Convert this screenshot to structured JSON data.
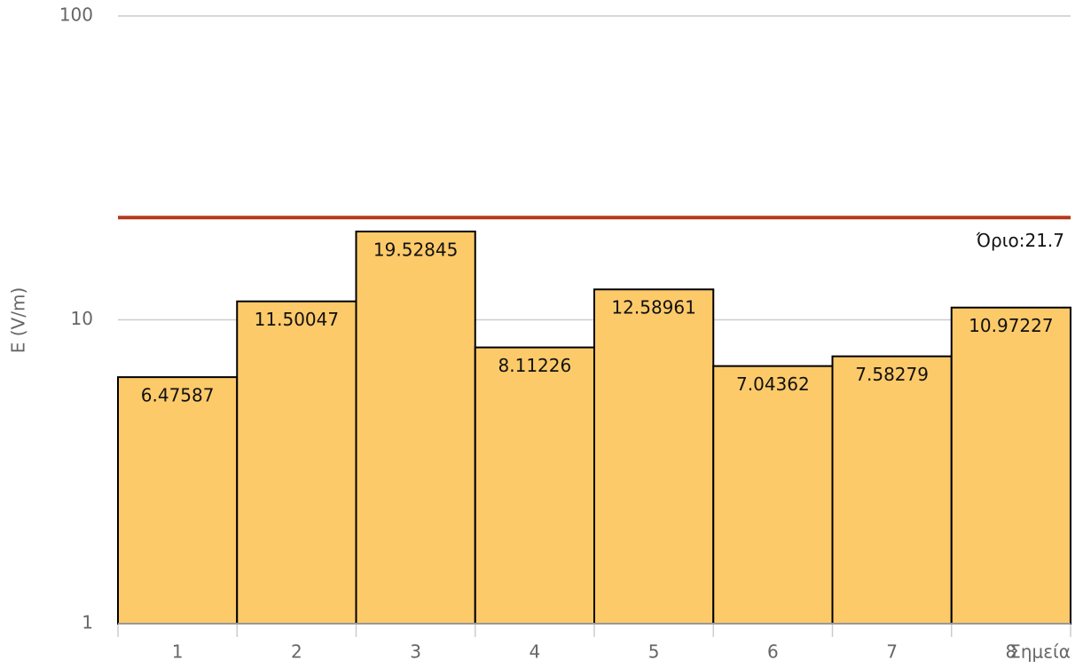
{
  "chart_data": {
    "type": "bar",
    "categories": [
      "1",
      "2",
      "3",
      "4",
      "5",
      "6",
      "7",
      "8"
    ],
    "values": [
      6.47587,
      11.50047,
      19.52845,
      8.11226,
      12.58961,
      7.04362,
      7.58279,
      10.97227
    ],
    "color": "#fdca6a",
    "ylabel": "E (V/m)",
    "xlabel": "Σημεία",
    "ylim": [
      1,
      100
    ],
    "yticks": [
      1,
      10,
      100
    ],
    "yscale": "log",
    "grid": true,
    "threshold": {
      "value": 21.7,
      "label": "Όριο:21.7",
      "color": "#b5381a"
    }
  }
}
